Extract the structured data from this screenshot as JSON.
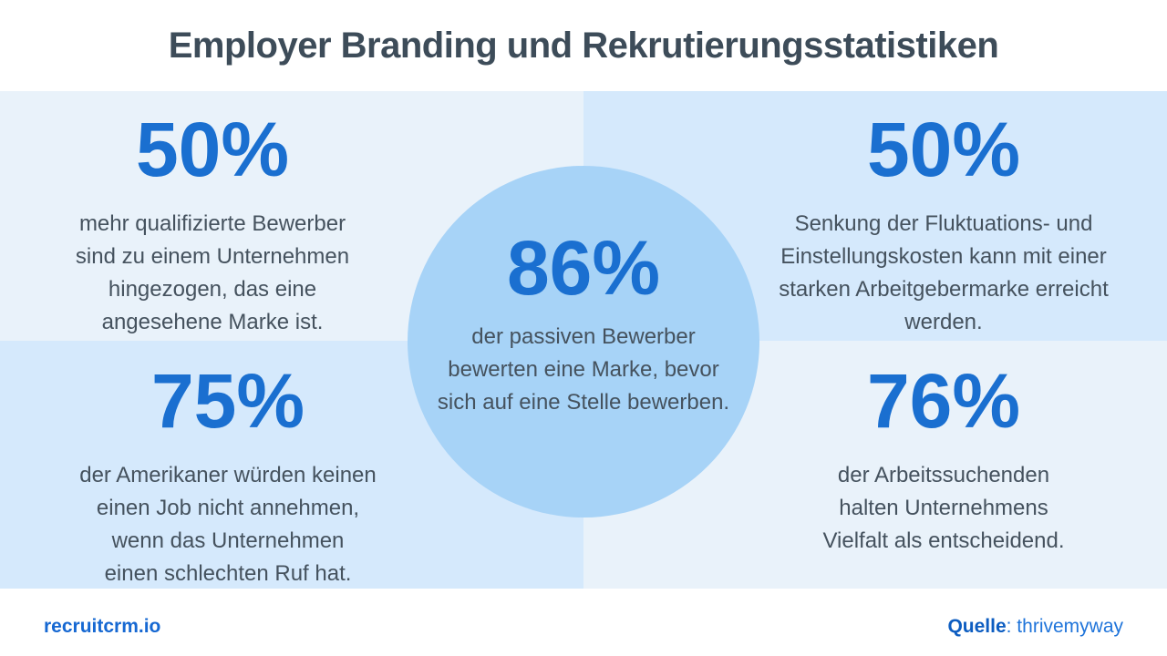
{
  "title": "Employer Branding und Rekrutierungsstatistiken",
  "stats": {
    "top_left": {
      "value": "50%",
      "text": "mehr qualifizierte Bewerber\nsind zu einem Unternehmen\nhingezogen,  das eine\nangesehene Marke ist."
    },
    "top_right": {
      "value": "50%",
      "text": "Senkung der Fluktuations- und\nEinstellungskosten kann mit einer\nstarken Arbeitgebermarke erreicht\nwerden."
    },
    "bottom_left": {
      "value": "75%",
      "text": "der Amerikaner würden keinen\neinen Job nicht annehmen,\nwenn das Unternehmen\neinen schlechten Ruf hat."
    },
    "bottom_right": {
      "value": "76%",
      "text": "der Arbeitssuchenden\nhalten Unternehmens\nVielfalt als entscheidend."
    },
    "center": {
      "value": "86%",
      "text": "der passiven Bewerber\nbewerten eine Marke, bevor\nsich auf eine Stelle bewerben."
    }
  },
  "footer": {
    "brand": "recruitcrm.io",
    "source_label": "Quelle",
    "source_value": ": thrivemyway"
  },
  "colors": {
    "accent_blue": "#1a6fd0",
    "title_slate": "#3d4c59",
    "body_slate": "#45525e",
    "tile_light": "#e9f2fa",
    "tile_dark": "#d5e9fc",
    "circle_blue": "#a7d3f7",
    "brand_blue": "#1668d2"
  },
  "chart_data": {
    "type": "table",
    "title": "Employer Branding und Rekrutierungsstatistiken",
    "items": [
      {
        "position": "top-left",
        "value": 50,
        "unit": "%",
        "label": "mehr qualifizierte Bewerber sind zu einem Unternehmen hingezogen, das eine angesehene Marke ist."
      },
      {
        "position": "top-right",
        "value": 50,
        "unit": "%",
        "label": "Senkung der Fluktuations- und Einstellungskosten kann mit einer starken Arbeitgebermarke erreicht werden."
      },
      {
        "position": "center",
        "value": 86,
        "unit": "%",
        "label": "der passiven Bewerber bewerten eine Marke, bevor sich auf eine Stelle bewerben."
      },
      {
        "position": "bottom-left",
        "value": 75,
        "unit": "%",
        "label": "der Amerikaner würden keinen einen Job nicht annehmen, wenn das Unternehmen einen schlechten Ruf hat."
      },
      {
        "position": "bottom-right",
        "value": 76,
        "unit": "%",
        "label": "der Arbeitssuchenden halten Unternehmens Vielfalt als entscheidend."
      }
    ],
    "source": "thrivemyway",
    "brand": "recruitcrm.io"
  }
}
